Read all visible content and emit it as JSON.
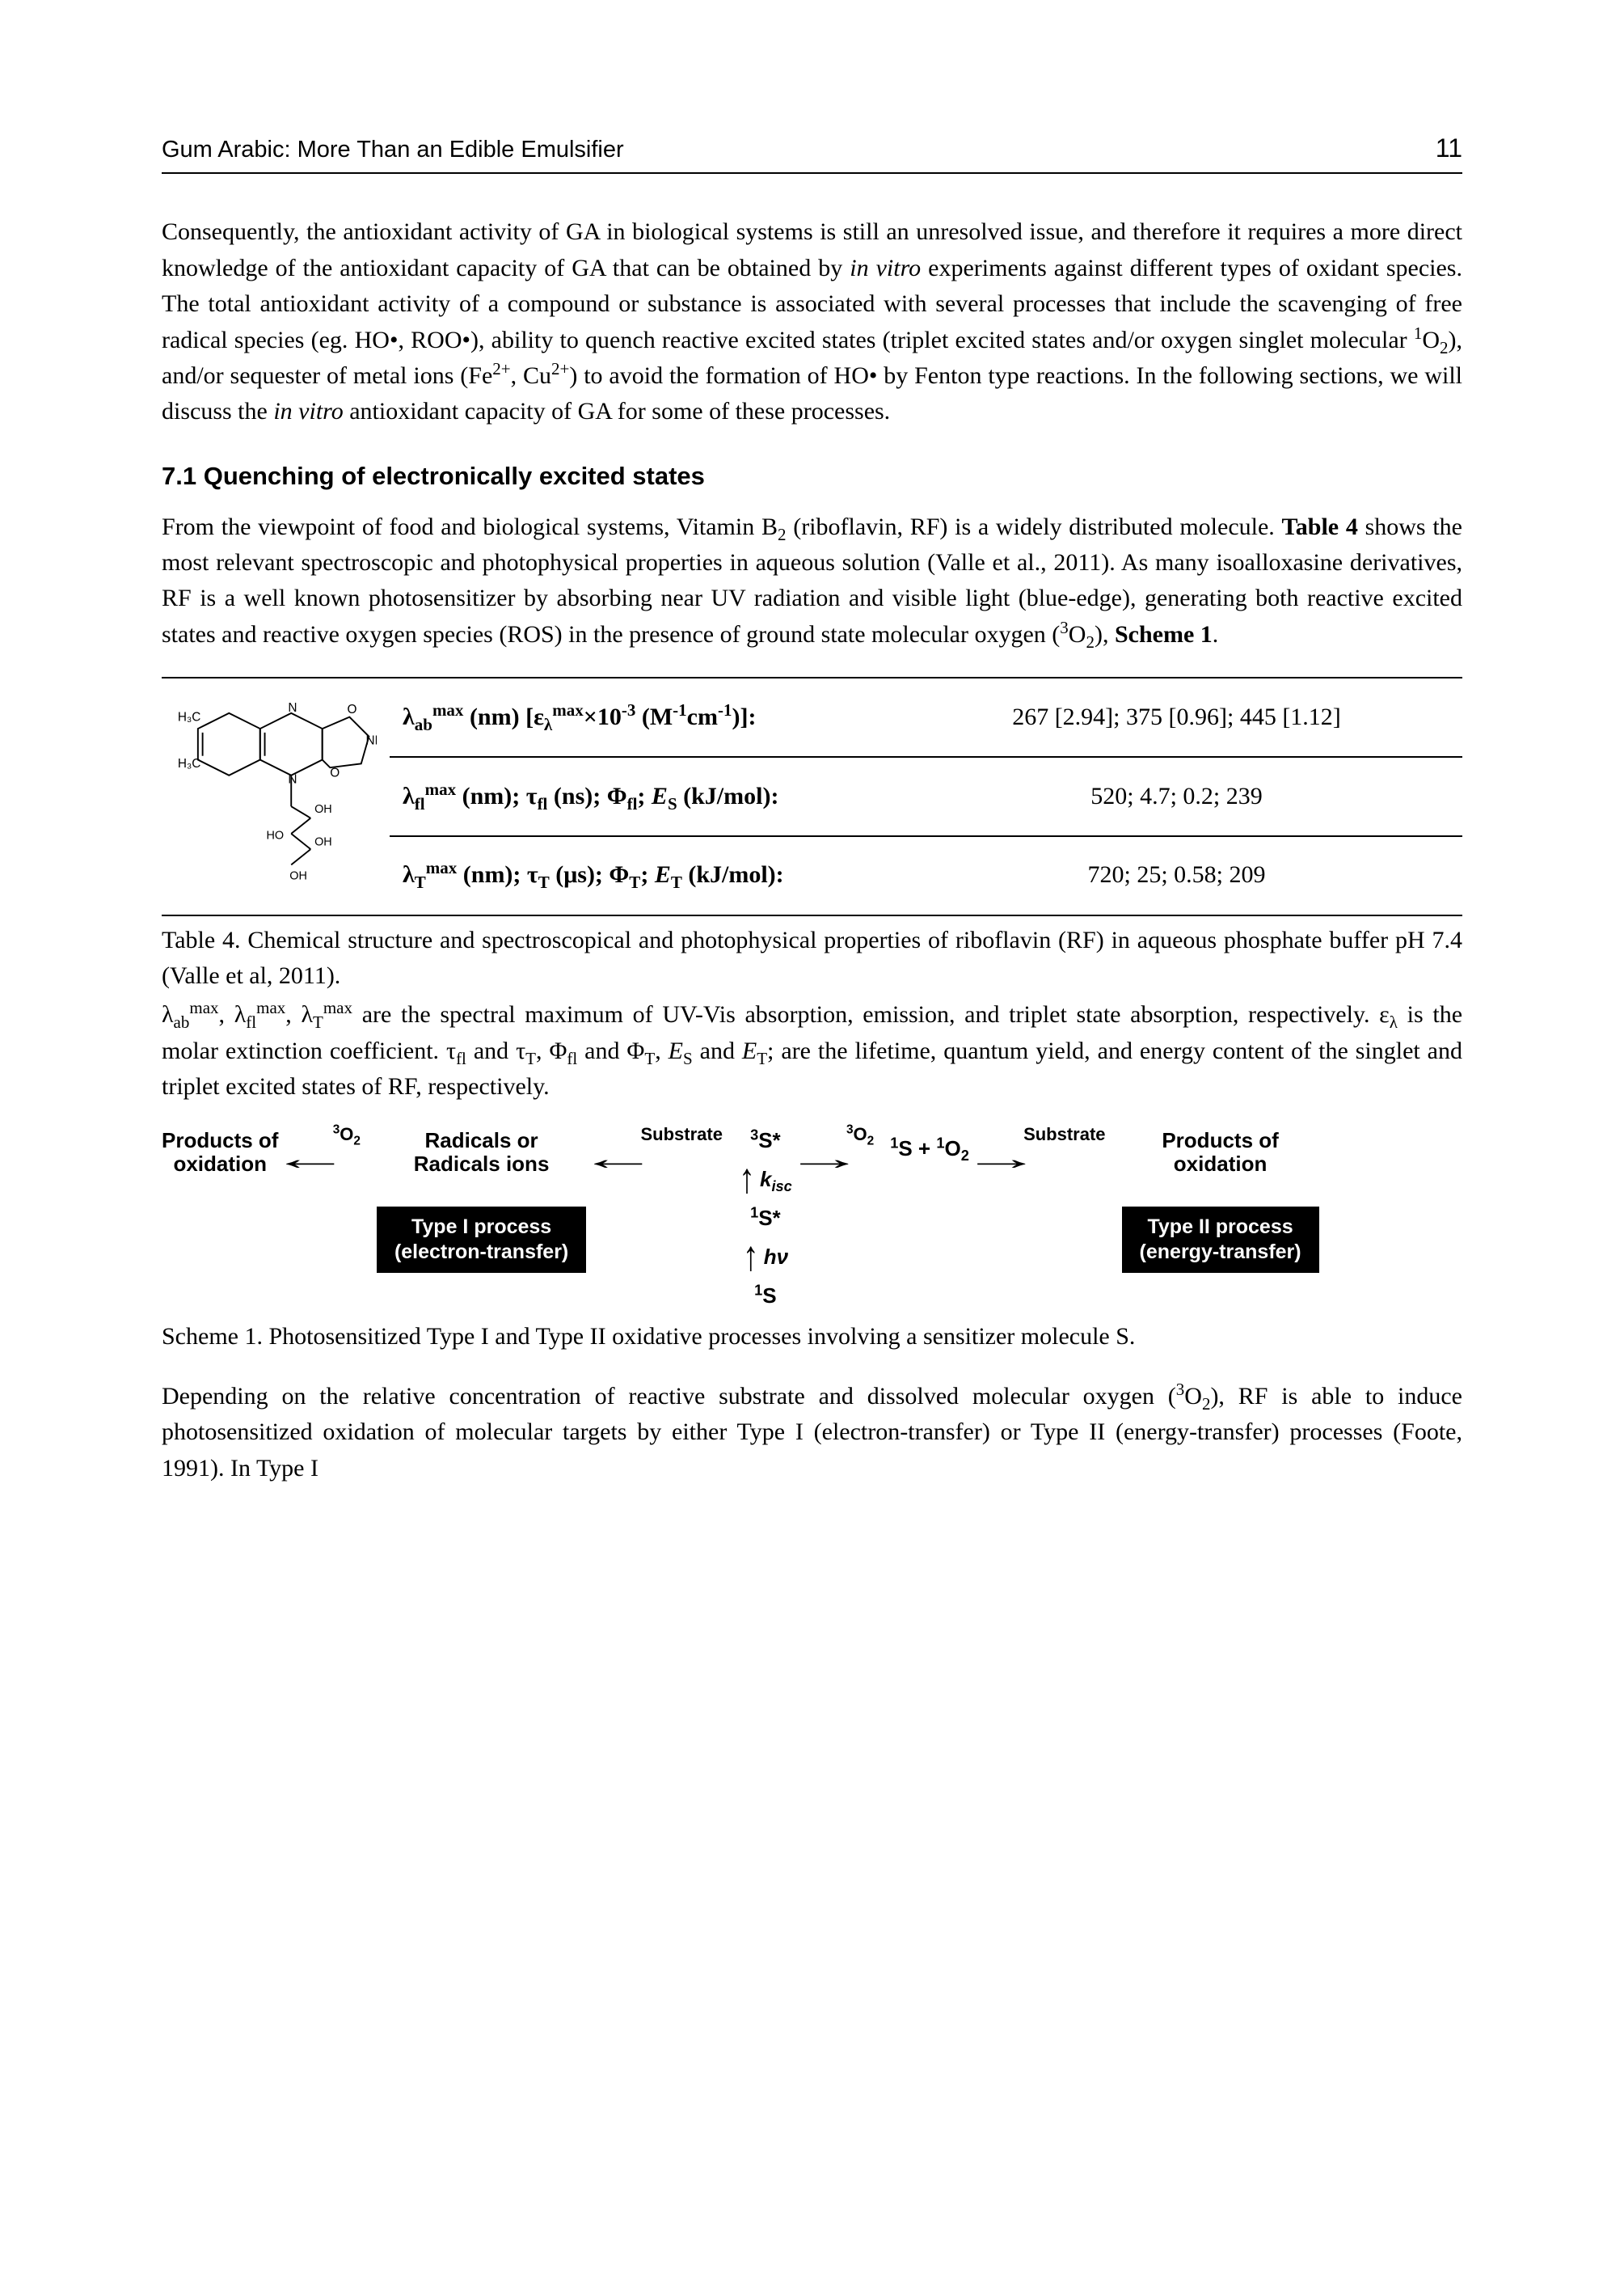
{
  "header": {
    "title": "Gum Arabic: More Than an Edible Emulsifier",
    "page": "11"
  },
  "para1": "Consequently, the antioxidant activity of GA in biological systems is still an unresolved issue, and therefore it requires a more direct knowledge of the antioxidant capacity of GA that can be obtained by <span class='ital'>in vitro</span> experiments against different types of oxidant species. The total antioxidant activity of a compound or substance is associated with several processes that include the scavenging of free radical species (eg. HO•, ROO•), ability to quench reactive excited states (triplet excited states and/or oxygen singlet molecular <sup>1</sup>O<sub>2</sub>), and/or sequester of metal ions (Fe<sup>2+</sup>, Cu<sup>2+</sup>) to avoid the formation of HO• by Fenton type reactions. In the following sections, we will discuss the <span class='ital'>in vitro</span> antioxidant capacity of GA for some of these processes.",
  "section": "7.1 Quenching of electronically excited states",
  "para2": "From the viewpoint of food and biological systems, Vitamin B<sub>2</sub> (riboflavin, RF) is a widely distributed molecule. <b>Table 4</b> shows the most relevant spectroscopic and photophysical properties in aqueous solution (Valle et al., 2011). As many isoalloxasine derivatives, RF is a well known photosensitizer by absorbing near UV radiation and visible light (blue-edge), generating both reactive excited states and reactive oxygen species (ROS) in the presence of ground state molecular oxygen (<sup>3</sup>O<sub>2</sub>), <b>Scheme 1</b>.",
  "table": {
    "rows": [
      {
        "label": "λ<sub>ab</sub><sup>max</sup> (nm) [ε<sub>λ</sub><sup>max</sup>×10<sup>-3</sup> (M<sup>-1</sup>cm<sup>-1</sup>)]:",
        "value": "267 [2.94]; 375 [0.96]; 445 [1.12]"
      },
      {
        "label": "λ<sub>fl</sub><sup>max</sup> (nm); τ<sub>fl</sub> (ns); Φ<sub>fl</sub>; <span class='ital'>E</span><sub>S</sub> (kJ/mol):",
        "value": "520; 4.7; 0.2; 239"
      },
      {
        "label": "λ<sub>T</sub><sup>max</sup> (nm); τ<sub>T</sub> (μs); Φ<sub>T</sub>; <span class='ital'>E</span><sub>T</sub> (kJ/mol):",
        "value": "720; 25; 0.58; 209"
      }
    ]
  },
  "table_caption": "Table 4. Chemical structure and spectroscopical and photophysical properties of riboflavin (RF) in aqueous phosphate buffer pH 7.4 (Valle et al, 2011).",
  "table_footnote": "λ<sub>ab</sub><sup>max</sup>, λ<sub>fl</sub><sup>max</sup>, λ<sub>T</sub><sup>max</sup> are the spectral maximum of UV-Vis absorption, emission, and triplet state absorption, respectively. ε<sub>λ</sub> is the molar extinction coefficient. τ<sub>fl</sub> and τ<sub>T</sub>, Φ<sub>fl</sub> and Φ<sub>T</sub>, <span class='ital'>E</span><sub>S</sub> and <span class='ital'>E</span><sub>T</sub>; are the lifetime, quantum yield, and energy content of the singlet and triplet excited states of RF, respectively.",
  "scheme": {
    "products": "Products of\noxidation",
    "o2": "<sup>3</sup>O<sub>2</sub>",
    "radicals": "Radicals or\nRadicals ions",
    "substrate": "Substrate",
    "box1": "Type I process\n(electron-transfer)",
    "s3": "<sup>3</sup>S*",
    "kisc": "<span class='ital'>k</span><sub>isc</sub>",
    "s1": "<sup>1</sup>S*",
    "hv": "<span class='ital'>h</span>ν",
    "s0": "<sup>1</sup>S",
    "sing": "<sup>1</sup>S + <sup>1</sup>O<sub>2</sub>",
    "box2": "Type II process\n(energy-transfer)"
  },
  "scheme_caption": "Scheme 1. Photosensitized Type I and Type II oxidative processes involving a sensitizer molecule S.",
  "para3": "Depending on the relative concentration of reactive substrate and dissolved molecular oxygen (<sup>3</sup>O<sub>2</sub>), RF is able to induce photosensitized oxidation of molecular targets by either Type I (electron-transfer) or Type II (energy-transfer) processes (Foote, 1991). In Type I"
}
